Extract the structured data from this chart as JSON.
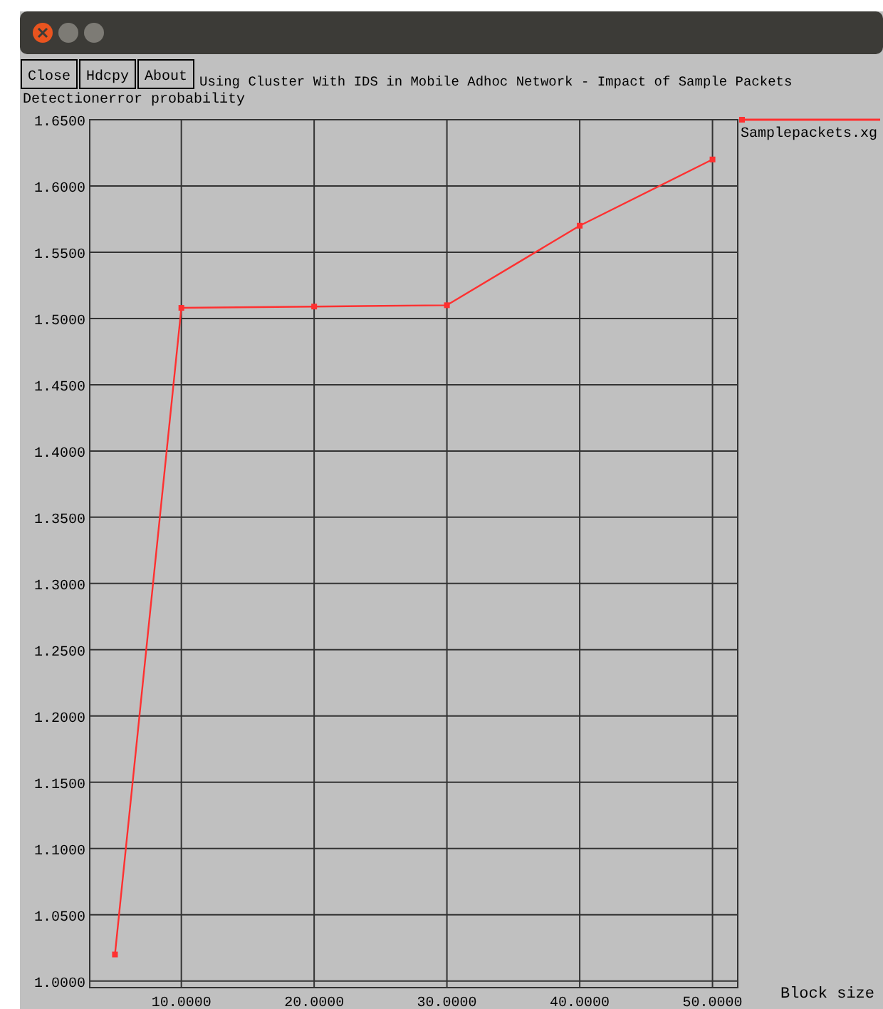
{
  "chart_data": {
    "type": "line",
    "title": "Using Cluster With IDS in Mobile Adhoc Network  - Impact of Sample Packets",
    "xlabel": "Block size",
    "ylabel": "Detectionerror probability",
    "x": [
      5,
      10,
      20,
      30,
      40,
      50
    ],
    "series": [
      {
        "name": "Samplepackets.xg",
        "color": "#ff3030",
        "values": [
          1.02,
          1.508,
          1.509,
          1.51,
          1.57,
          1.62
        ]
      }
    ],
    "xlim": [
      3.1,
      51.9
    ],
    "ylim": [
      0.995,
      1.65
    ],
    "xticks": [
      {
        "value": 10,
        "label": "10.0000"
      },
      {
        "value": 20,
        "label": "20.0000"
      },
      {
        "value": 30,
        "label": "30.0000"
      },
      {
        "value": 40,
        "label": "40.0000"
      },
      {
        "value": 50,
        "label": "50.0000"
      }
    ],
    "yticks": [
      {
        "value": 1,
        "label": "1.0000"
      },
      {
        "value": 1.05,
        "label": "1.0500"
      },
      {
        "value": 1.1,
        "label": "1.1000"
      },
      {
        "value": 1.15,
        "label": "1.1500"
      },
      {
        "value": 1.2,
        "label": "1.2000"
      },
      {
        "value": 1.25,
        "label": "1.2500"
      },
      {
        "value": 1.3,
        "label": "1.3000"
      },
      {
        "value": 1.35,
        "label": "1.3500"
      },
      {
        "value": 1.4,
        "label": "1.4000"
      },
      {
        "value": 1.45,
        "label": "1.4500"
      },
      {
        "value": 1.5,
        "label": "1.5000"
      },
      {
        "value": 1.55,
        "label": "1.5500"
      },
      {
        "value": 1.6,
        "label": "1.6000"
      },
      {
        "value": 1.65,
        "label": "1.6500"
      }
    ],
    "annotations": [
      "Close",
      "Hdcpy",
      "About"
    ],
    "grid": true,
    "legend": "top right",
    "marker": "square",
    "line_style": "solid"
  }
}
